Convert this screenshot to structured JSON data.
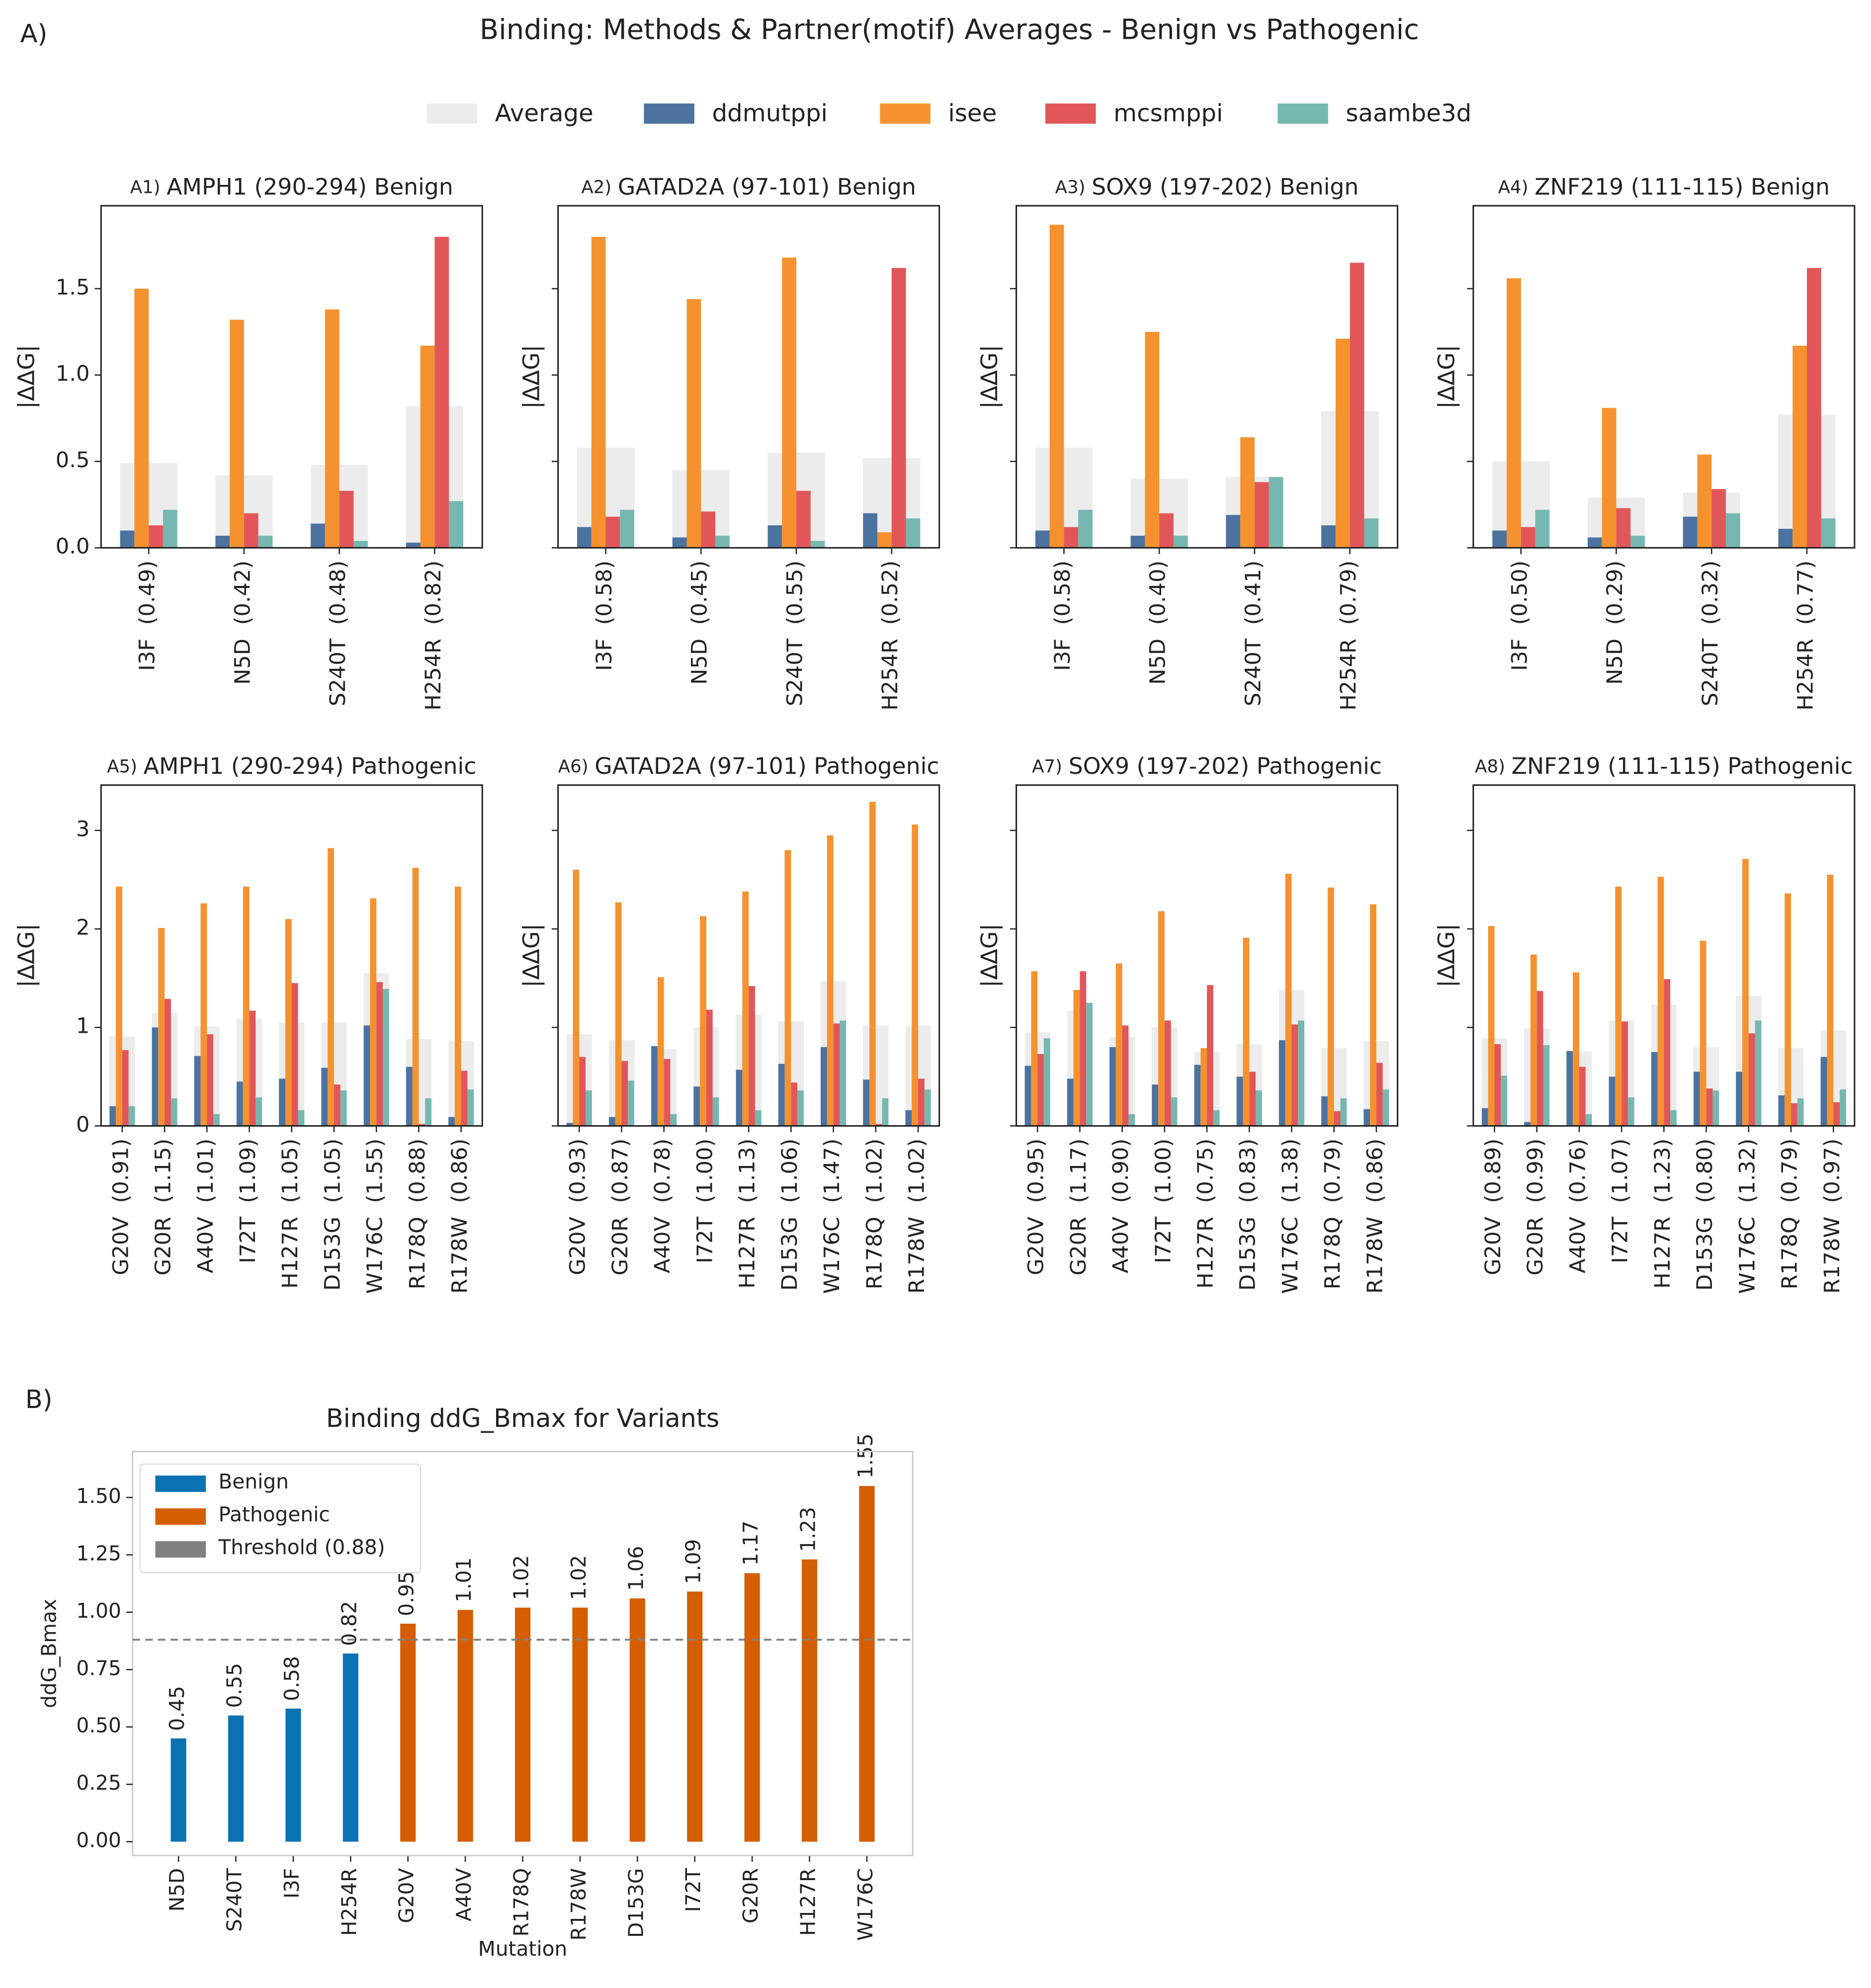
{
  "figure": {
    "title": "Binding: Methods & Partner(motif) Averages - Benign vs Pathogenic",
    "panel_labels": [
      "A)",
      "B)"
    ]
  },
  "chart_data": [
    {
      "type": "bar",
      "panel": "A1)",
      "title": "AMPH1 (290-294) Benign",
      "ylabel": "|ΔΔG|",
      "categories": [
        "I3F  (0.49)",
        "N5D  (0.42)",
        "S240T  (0.48)",
        "H254R  (0.82)"
      ],
      "series": [
        {
          "name": "Average",
          "color": "#ececec",
          "style": "background",
          "values": [
            0.49,
            0.42,
            0.48,
            0.82
          ]
        },
        {
          "name": "ddmutppi",
          "color": "#4c72a0",
          "values": [
            0.1,
            0.07,
            0.14,
            0.03
          ]
        },
        {
          "name": "isee",
          "color": "#f5922f",
          "values": [
            1.5,
            1.32,
            1.38,
            1.17
          ]
        },
        {
          "name": "mcsmppi",
          "color": "#e15759",
          "values": [
            0.13,
            0.2,
            0.33,
            1.8
          ]
        },
        {
          "name": "saambe3d",
          "color": "#76b7b2",
          "values": [
            0.22,
            0.07,
            0.04,
            0.27
          ]
        }
      ],
      "ylim": [
        0,
        1.98
      ],
      "yticks": [
        {
          "value": 0,
          "label": "0.0"
        },
        0.5,
        {
          "value": 1,
          "label": "1.0"
        },
        1.5
      ],
      "ytick_labels": true
    },
    {
      "type": "bar",
      "panel": "A2)",
      "title": "GATAD2A (97-101) Benign",
      "ylabel": "|ΔΔG|",
      "categories": [
        "I3F  (0.58)",
        "N5D  (0.45)",
        "S240T  (0.55)",
        "H254R  (0.52)"
      ],
      "series": [
        {
          "color": "#ececec",
          "style": "background",
          "values": [
            0.58,
            0.45,
            0.55,
            0.52
          ]
        },
        {
          "color": "#4c72a0",
          "values": [
            0.12,
            0.06,
            0.13,
            0.2
          ]
        },
        {
          "color": "#f5922f",
          "values": [
            1.8,
            1.44,
            1.68,
            0.09
          ]
        },
        {
          "color": "#e15759",
          "values": [
            0.18,
            0.21,
            0.33,
            1.62
          ]
        },
        {
          "color": "#76b7b2",
          "values": [
            0.22,
            0.07,
            0.04,
            0.17
          ]
        }
      ],
      "ylim": [
        0,
        1.98
      ],
      "yticks": [
        0,
        0.5,
        1,
        1.5
      ],
      "ytick_labels": false
    },
    {
      "type": "bar",
      "panel": "A3)",
      "title": "SOX9 (197-202) Benign",
      "ylabel": "|ΔΔG|",
      "categories": [
        "I3F  (0.58)",
        "N5D  (0.40)",
        "S240T  (0.41)",
        "H254R  (0.79)"
      ],
      "series": [
        {
          "color": "#ececec",
          "style": "background",
          "values": [
            0.58,
            0.4,
            0.41,
            0.79
          ]
        },
        {
          "color": "#4c72a0",
          "values": [
            0.1,
            0.07,
            0.19,
            0.13
          ]
        },
        {
          "color": "#f5922f",
          "values": [
            1.87,
            1.25,
            0.64,
            1.21
          ]
        },
        {
          "color": "#e15759",
          "values": [
            0.12,
            0.2,
            0.38,
            1.65
          ]
        },
        {
          "color": "#76b7b2",
          "values": [
            0.22,
            0.07,
            0.41,
            0.17
          ]
        }
      ],
      "ylim": [
        0,
        1.98
      ],
      "yticks": [
        0,
        0.5,
        1,
        1.5
      ],
      "ytick_labels": false
    },
    {
      "type": "bar",
      "panel": "A4)",
      "title": "ZNF219 (111-115) Benign",
      "ylabel": "|ΔΔG|",
      "categories": [
        "I3F  (0.50)",
        "N5D  (0.29)",
        "S240T  (0.32)",
        "H254R  (0.77)"
      ],
      "series": [
        {
          "color": "#ececec",
          "style": "background",
          "values": [
            0.5,
            0.29,
            0.32,
            0.77
          ]
        },
        {
          "color": "#4c72a0",
          "values": [
            0.1,
            0.06,
            0.18,
            0.11
          ]
        },
        {
          "color": "#f5922f",
          "values": [
            1.56,
            0.81,
            0.54,
            1.17
          ]
        },
        {
          "color": "#e15759",
          "values": [
            0.12,
            0.23,
            0.34,
            1.62
          ]
        },
        {
          "color": "#76b7b2",
          "values": [
            0.22,
            0.07,
            0.2,
            0.17
          ]
        }
      ],
      "ylim": [
        0,
        1.98
      ],
      "yticks": [
        0,
        0.5,
        1,
        1.5
      ],
      "ytick_labels": false
    },
    {
      "type": "bar",
      "panel": "A5)",
      "title": "AMPH1 (290-294) Pathogenic",
      "ylabel": "|ΔΔG|",
      "categories": [
        "G20V  (0.91)",
        "G20R  (1.15)",
        "A40V  (1.01)",
        "I72T  (1.09)",
        "H127R  (1.05)",
        "D153G  (1.05)",
        "W176C  (1.55)",
        "R178Q  (0.88)",
        "R178W  (0.86)"
      ],
      "series": [
        {
          "color": "#ececec",
          "style": "background",
          "values": [
            0.91,
            1.15,
            1.01,
            1.09,
            1.05,
            1.05,
            1.55,
            0.88,
            0.86
          ]
        },
        {
          "color": "#4c72a0",
          "values": [
            0.2,
            1.0,
            0.71,
            0.45,
            0.48,
            0.59,
            1.02,
            0.6,
            0.09
          ]
        },
        {
          "color": "#f5922f",
          "values": [
            2.43,
            2.01,
            2.26,
            2.43,
            2.1,
            2.82,
            2.31,
            2.62,
            2.43
          ]
        },
        {
          "color": "#e15759",
          "values": [
            0.77,
            1.29,
            0.93,
            1.17,
            1.45,
            0.42,
            1.46,
            0.02,
            0.56
          ]
        },
        {
          "color": "#76b7b2",
          "values": [
            0.2,
            0.28,
            0.12,
            0.29,
            0.16,
            0.36,
            1.39,
            0.28,
            0.37
          ]
        }
      ],
      "ylim": [
        0,
        3.46
      ],
      "yticks": [
        0,
        1,
        2,
        3
      ],
      "ytick_labels": true
    },
    {
      "type": "bar",
      "panel": "A6)",
      "title": "GATAD2A (97-101) Pathogenic",
      "ylabel": "|ΔΔG|",
      "categories": [
        "G20V  (0.93)",
        "G20R  (0.87)",
        "A40V  (0.78)",
        "I72T  (1.00)",
        "H127R  (1.13)",
        "D153G  (1.06)",
        "W176C  (1.47)",
        "R178Q  (1.02)",
        "R178W  (1.02)"
      ],
      "series": [
        {
          "color": "#ececec",
          "style": "background",
          "values": [
            0.93,
            0.87,
            0.78,
            1.0,
            1.13,
            1.06,
            1.47,
            1.02,
            1.02
          ]
        },
        {
          "color": "#4c72a0",
          "values": [
            0.03,
            0.09,
            0.81,
            0.4,
            0.57,
            0.63,
            0.8,
            0.47,
            0.16
          ]
        },
        {
          "color": "#f5922f",
          "values": [
            2.6,
            2.27,
            1.51,
            2.13,
            2.38,
            2.8,
            2.95,
            3.29,
            3.06
          ]
        },
        {
          "color": "#e15759",
          "values": [
            0.7,
            0.66,
            0.68,
            1.18,
            1.42,
            0.44,
            1.04,
            0.02,
            0.48
          ]
        },
        {
          "color": "#76b7b2",
          "values": [
            0.36,
            0.46,
            0.12,
            0.29,
            0.16,
            0.36,
            1.07,
            0.28,
            0.37
          ]
        }
      ],
      "ylim": [
        0,
        3.46
      ],
      "yticks": [
        0,
        1,
        2,
        3
      ],
      "ytick_labels": false
    },
    {
      "type": "bar",
      "panel": "A7)",
      "title": "SOX9 (197-202) Pathogenic",
      "ylabel": "|ΔΔG|",
      "categories": [
        "G20V  (0.95)",
        "G20R  (1.17)",
        "A40V  (0.90)",
        "I72T  (1.00)",
        "H127R  (0.75)",
        "D153G  (0.83)",
        "W176C  (1.38)",
        "R178Q  (0.79)",
        "R178W  (0.86)"
      ],
      "series": [
        {
          "color": "#ececec",
          "style": "background",
          "values": [
            0.95,
            1.17,
            0.9,
            1.0,
            0.75,
            0.83,
            1.38,
            0.79,
            0.86
          ]
        },
        {
          "color": "#4c72a0",
          "values": [
            0.61,
            0.48,
            0.8,
            0.42,
            0.62,
            0.5,
            0.87,
            0.3,
            0.17
          ]
        },
        {
          "color": "#f5922f",
          "values": [
            1.57,
            1.38,
            1.65,
            2.18,
            0.79,
            1.91,
            2.56,
            2.42,
            2.25
          ]
        },
        {
          "color": "#e15759",
          "values": [
            0.73,
            1.57,
            1.02,
            1.07,
            1.43,
            0.55,
            1.03,
            0.15,
            0.64
          ]
        },
        {
          "color": "#76b7b2",
          "values": [
            0.89,
            1.25,
            0.12,
            0.29,
            0.16,
            0.36,
            1.07,
            0.28,
            0.37
          ]
        }
      ],
      "ylim": [
        0,
        3.46
      ],
      "yticks": [
        0,
        1,
        2,
        3
      ],
      "ytick_labels": false
    },
    {
      "type": "bar",
      "panel": "A8)",
      "title": "ZNF219 (111-115) Pathogenic",
      "ylabel": "|ΔΔG|",
      "categories": [
        "G20V  (0.89)",
        "G20R  (0.99)",
        "A40V  (0.76)",
        "I72T  (1.07)",
        "H127R  (1.23)",
        "D153G  (0.80)",
        "W176C  (1.32)",
        "R178Q  (0.79)",
        "R178W  (0.97)"
      ],
      "series": [
        {
          "color": "#ececec",
          "style": "background",
          "values": [
            0.89,
            0.99,
            0.76,
            1.07,
            1.23,
            0.8,
            1.32,
            0.79,
            0.97
          ]
        },
        {
          "color": "#4c72a0",
          "values": [
            0.18,
            0.04,
            0.76,
            0.5,
            0.75,
            0.55,
            0.55,
            0.31,
            0.7
          ]
        },
        {
          "color": "#f5922f",
          "values": [
            2.03,
            1.74,
            1.56,
            2.43,
            2.53,
            1.88,
            2.71,
            2.36,
            2.55
          ]
        },
        {
          "color": "#e15759",
          "values": [
            0.83,
            1.37,
            0.6,
            1.06,
            1.49,
            0.38,
            0.94,
            0.23,
            0.24
          ]
        },
        {
          "color": "#76b7b2",
          "values": [
            0.51,
            0.82,
            0.12,
            0.29,
            0.16,
            0.36,
            1.07,
            0.28,
            0.37
          ]
        }
      ],
      "ylim": [
        0,
        3.46
      ],
      "yticks": [
        0,
        1,
        2,
        3
      ],
      "ytick_labels": false
    },
    {
      "type": "bar",
      "title": "Binding ddG_Bmax for Variants",
      "xlabel": "Mutation",
      "ylabel": "ddG_Bmax",
      "categories": [
        "N5D",
        "S240T",
        "I3F",
        "H254R",
        "G20V",
        "A40V",
        "R178Q",
        "R178W",
        "D153G",
        "I72T",
        "G20R",
        "H127R",
        "W176C"
      ],
      "series": [
        {
          "name": "Benign",
          "color": "#0a72b2",
          "values": [
            0.45,
            0.55,
            0.58,
            0.82,
            null,
            null,
            null,
            null,
            null,
            null,
            null,
            null,
            null
          ]
        },
        {
          "name": "Pathogenic",
          "color": "#d55e00",
          "values": [
            null,
            null,
            null,
            null,
            0.95,
            1.01,
            1.02,
            1.02,
            1.06,
            1.09,
            1.17,
            1.23,
            1.55
          ]
        }
      ],
      "threshold": {
        "label": "Threshold (0.88)",
        "value": 0.88,
        "color": "#808080"
      },
      "value_labels": true,
      "legend": "upper left",
      "ylim": [
        -0.06,
        1.7
      ],
      "yticks": [
        {
          "value": 0,
          "label": "0.00"
        },
        0.25,
        {
          "value": 0.5,
          "label": "0.50"
        },
        0.75,
        {
          "value": 1,
          "label": "1.00"
        },
        1.25,
        {
          "value": 1.5,
          "label": "1.50"
        }
      ],
      "ytick_labels": true
    }
  ]
}
